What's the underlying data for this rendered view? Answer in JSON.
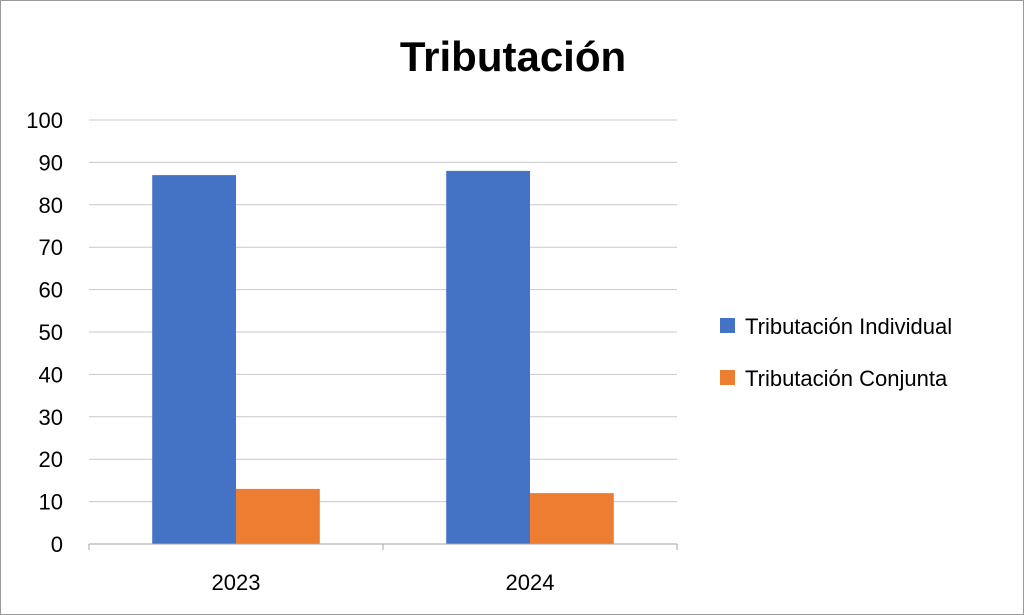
{
  "chart_data": {
    "type": "bar",
    "title": "Tributación",
    "xlabel": "",
    "ylabel": "",
    "categories": [
      "2023",
      "2024"
    ],
    "series": [
      {
        "name": "Tributación Individual",
        "values": [
          87,
          88
        ],
        "color": "#4472C4"
      },
      {
        "name": "Tributación Conjunta",
        "values": [
          13,
          12
        ],
        "color": "#ED7D31"
      }
    ],
    "ylim": [
      0,
      100
    ],
    "yticks": [
      "0",
      "10",
      "20",
      "30",
      "40",
      "50",
      "60",
      "70",
      "80",
      "90",
      "100"
    ],
    "grid": true,
    "legend": "right",
    "gridline_color": "#C8C8C8",
    "axis_color": "#A6A6A6"
  }
}
